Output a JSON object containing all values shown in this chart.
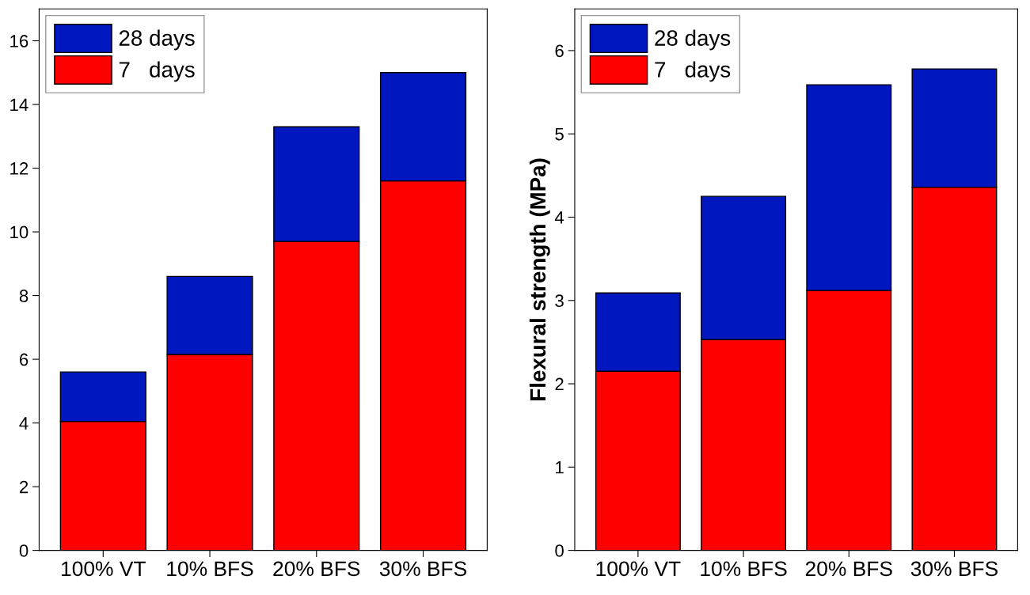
{
  "chart_data": [
    {
      "type": "bar",
      "stacked": true,
      "categories": [
        "100% VT",
        "10% BFS",
        "20% BFS",
        "30% BFS"
      ],
      "series": [
        {
          "name": "7   days",
          "color": "#ff0000",
          "values": [
            4.05,
            6.15,
            9.7,
            11.6
          ]
        },
        {
          "name": "28 days",
          "color": "#0016bf",
          "values": [
            1.55,
            2.45,
            3.6,
            3.4
          ]
        }
      ],
      "ylim": [
        0,
        17
      ],
      "yticks": [
        0,
        2,
        4,
        6,
        8,
        10,
        12,
        14,
        16
      ],
      "legend": "top left"
    },
    {
      "type": "bar",
      "stacked": true,
      "ylabel": "Flexural strength (MPa)",
      "categories": [
        "100% VT",
        "10% BFS",
        "20% BFS",
        "30% BFS"
      ],
      "series": [
        {
          "name": "7   days",
          "color": "#ff0000",
          "values": [
            2.15,
            2.53,
            3.12,
            4.36
          ]
        },
        {
          "name": "28 days",
          "color": "#0016bf",
          "values": [
            0.94,
            1.72,
            2.47,
            1.42
          ]
        }
      ],
      "ylim": [
        0,
        6.5
      ],
      "yticks": [
        0,
        1,
        2,
        3,
        4,
        5,
        6
      ],
      "legend": "top left"
    }
  ]
}
